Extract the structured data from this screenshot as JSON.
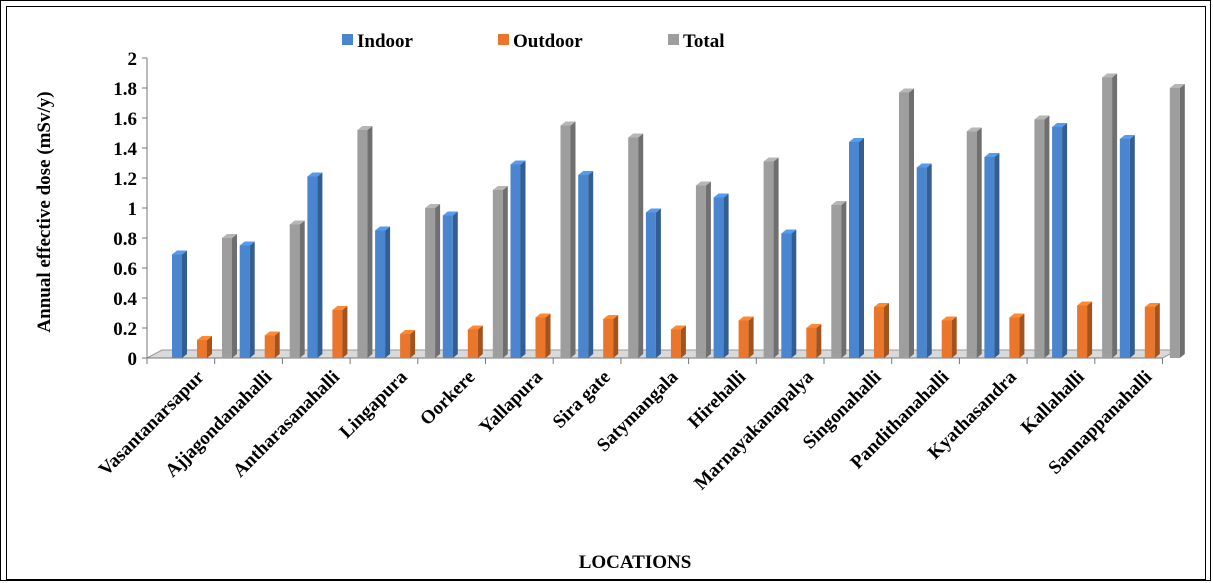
{
  "chart_data": {
    "type": "bar",
    "title": "",
    "xlabel": "LOCATIONS",
    "ylabel": "Annual effective dose (mSv/y)",
    "ylim": [
      0,
      2
    ],
    "yticks": [
      "0",
      "0.2",
      "0.4",
      "0.6",
      "0.8",
      "1",
      "1.2",
      "1.4",
      "1.6",
      "1.8",
      "2"
    ],
    "grid": false,
    "legend_position": "top",
    "categories": [
      "Vasantanarsapur",
      "Ajjagondanahalli",
      "Antharasanahalli",
      "Lingapura",
      "Oorkere",
      "Yallapura",
      "Sira gate",
      "Satymangala",
      "Hirehalli",
      "Marnayakanapalya",
      "Singonahalli",
      "Pandithanahalli",
      "Kyathasandra",
      "Kallahalli",
      "Sannappanahalli"
    ],
    "series": [
      {
        "name": "Indoor",
        "color": "#4a86cf",
        "values": [
          0.69,
          0.75,
          1.21,
          0.85,
          0.95,
          1.29,
          1.22,
          0.97,
          1.07,
          0.83,
          1.44,
          1.27,
          1.34,
          1.54,
          1.46
        ]
      },
      {
        "name": "Outdoor",
        "color": "#e9762b",
        "values": [
          0.12,
          0.15,
          0.32,
          0.16,
          0.19,
          0.27,
          0.26,
          0.19,
          0.25,
          0.2,
          0.34,
          0.25,
          0.27,
          0.35,
          0.34
        ]
      },
      {
        "name": "Total",
        "color": "#9e9e9e",
        "values": [
          0.8,
          0.89,
          1.52,
          1.0,
          1.12,
          1.55,
          1.47,
          1.15,
          1.31,
          1.02,
          1.77,
          1.51,
          1.59,
          1.87,
          1.8
        ]
      }
    ]
  }
}
